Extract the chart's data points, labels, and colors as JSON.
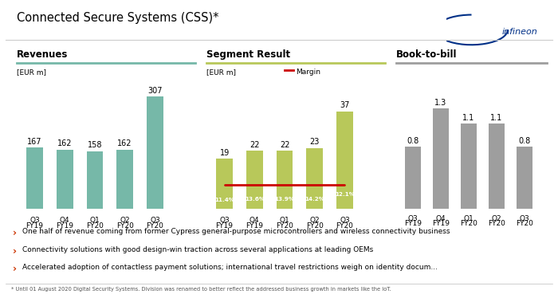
{
  "title": "Connected Secure Systems (CSS)*",
  "rev_title": "Revenues",
  "seg_title": "Segment Result",
  "btb_title": "Book-to-bill",
  "eur_label": "[EUR m]",
  "margin_label": "Margin",
  "categories": [
    "Q3\nFY19",
    "Q4\nFY19",
    "Q1\nFY20",
    "Q2\nFY20",
    "Q3\nFY20"
  ],
  "revenues": [
    167,
    162,
    158,
    162,
    307
  ],
  "segment": [
    19,
    22,
    22,
    23,
    37
  ],
  "margins": [
    11.4,
    13.6,
    13.9,
    14.2,
    12.1
  ],
  "margin_labels": [
    "11.4%",
    "13.6%",
    "13.9%",
    "14.2%",
    "12.1%"
  ],
  "btb": [
    0.8,
    1.3,
    1.1,
    1.1,
    0.8
  ],
  "rev_bar_color": "#76b8a8",
  "seg_bar_color": "#b8c85a",
  "btb_bar_color": "#9e9e9e",
  "margin_line_color": "#cc0000",
  "bullet_color": "#cc3300",
  "footnote_line": "* Until 01 August 2020 Digital Security Systems. Division was renamed to better reflect the addressed business growth in markets like the IoT.",
  "bullets": [
    "One half of revenue coming from former Cypress general-purpose microcontrollers and wireless connectivity business",
    "Connectivity solutions with good design-win traction across several applications at leading OEMs",
    "Accelerated adoption of contactless payment solutions; international travel restrictions weigh on identity docum..."
  ],
  "bg_color": "#ffffff",
  "header_line_color_rev": "#76b8a8",
  "header_line_color_seg": "#b8c85a",
  "header_line_color_btb": "#9e9e9e",
  "infineon_color": "#003087"
}
